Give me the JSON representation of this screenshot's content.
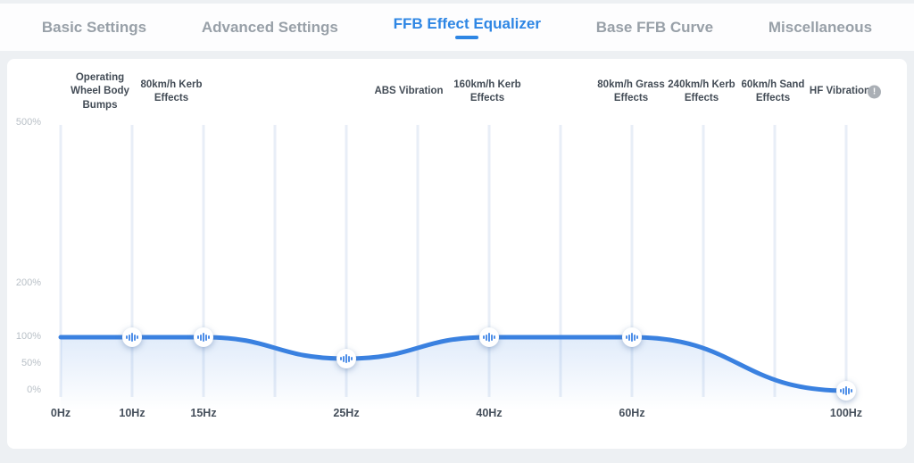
{
  "tabs": [
    {
      "label": "Basic Settings",
      "active": false
    },
    {
      "label": "Advanced Settings",
      "active": false
    },
    {
      "label": "FFB Effect Equalizer",
      "active": true
    },
    {
      "label": "Base FFB Curve",
      "active": false
    },
    {
      "label": "Miscellaneous",
      "active": false
    }
  ],
  "equalizer": {
    "bands": [
      {
        "label": "Operating Wheel Body Bumps"
      },
      {
        "label": "80km/h Kerb Effects"
      },
      {
        "label": "ABS Vibration"
      },
      {
        "label": "160km/h Kerb Effects"
      },
      {
        "label": "80km/h Grass Effects"
      },
      {
        "label": "240km/h Kerb Effects"
      },
      {
        "label": "60km/h Sand Effects"
      },
      {
        "label": "HF Vibration",
        "info_icon": true
      }
    ],
    "info_icon_glyph": "!",
    "chart_data": {
      "type": "line",
      "x": [
        "0Hz",
        "10Hz",
        "15Hz",
        "25Hz",
        "40Hz",
        "60Hz",
        "100Hz"
      ],
      "values": [
        100,
        100,
        100,
        60,
        100,
        100,
        0
      ],
      "handles": [
        "10Hz",
        "15Hz",
        "25Hz",
        "40Hz",
        "60Hz",
        "100Hz"
      ],
      "y_ticks": [
        "500%",
        "200%",
        "100%",
        "50%",
        "0%"
      ],
      "y_tick_values": [
        500,
        200,
        100,
        50,
        0
      ],
      "ylim": [
        0,
        500
      ],
      "grid": "faint vertical slider tracks",
      "legend": "none",
      "curve_color": "#3a81e0",
      "area_fill_color": "#3a81e0",
      "track_color": "#e8eef7"
    }
  },
  "colors": {
    "accent_blue": "#2e86e4",
    "tab_inactive": "#98a0a8",
    "band_label_text": "#434c56",
    "y_tick_text": "#b9c0c7",
    "x_tick_text": "#454f5b",
    "info_icon_gray": "#aaafb5",
    "panel_bg": "#ffffff",
    "page_bg": "#edf0f3"
  }
}
